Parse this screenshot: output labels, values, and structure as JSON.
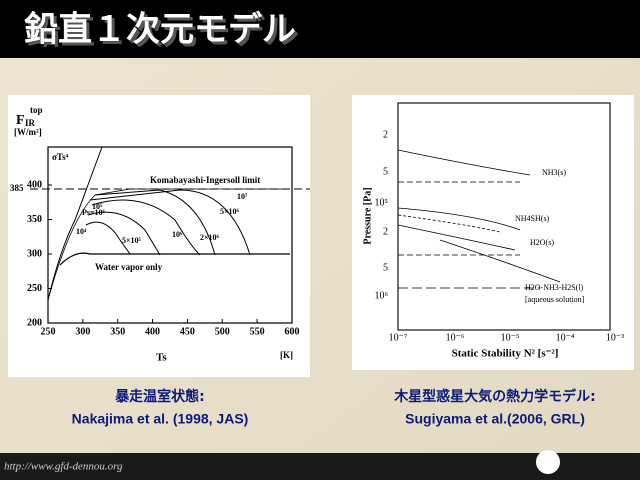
{
  "title": "鉛直１次元モデル",
  "left_figure": {
    "y_label": "F",
    "y_label_sub": "IR",
    "y_label_sup": "top",
    "y_unit": "[W/m²]",
    "x_label": "Ts",
    "x_unit": "[K]",
    "yticks": [
      200,
      250,
      300,
      350,
      400
    ],
    "xticks": [
      250,
      300,
      350,
      400,
      450,
      500,
      550,
      600
    ],
    "marker": "385",
    "annotations": [
      "σTs⁴",
      "Komabayashi-Ingersoll limit",
      "Water vapor only",
      "Ps=10⁶",
      "10⁵",
      "10⁴",
      "5×10⁵",
      "10⁶",
      "2×10⁶",
      "5×10⁶",
      "10⁷"
    ]
  },
  "right_figure": {
    "y_label": "Pressure [Pa]",
    "x_label": "Static Stability N² [s⁻²]",
    "yticks": [
      "2",
      "5",
      "10⁵",
      "2",
      "5",
      "10⁶"
    ],
    "xticks": [
      "10⁻⁷",
      "10⁻⁶",
      "10⁻⁵",
      "10⁻⁴",
      "10⁻³"
    ],
    "annotations": [
      "NH3(s)",
      "NH4SH(s)",
      "H2O(s)",
      "H2O-NH3-H2S(l)",
      "[aqueous solution]"
    ]
  },
  "captions": [
    {
      "line1": "暴走温室状態:",
      "line2": "Nakajima et al. (1998, JAS)"
    },
    {
      "line1": "木星型惑星大気の熱力学モデル:",
      "line2": "Sugiyama et al.(2006, GRL)"
    }
  ],
  "footer": {
    "url": "http://www.gfd-dennou.org"
  }
}
